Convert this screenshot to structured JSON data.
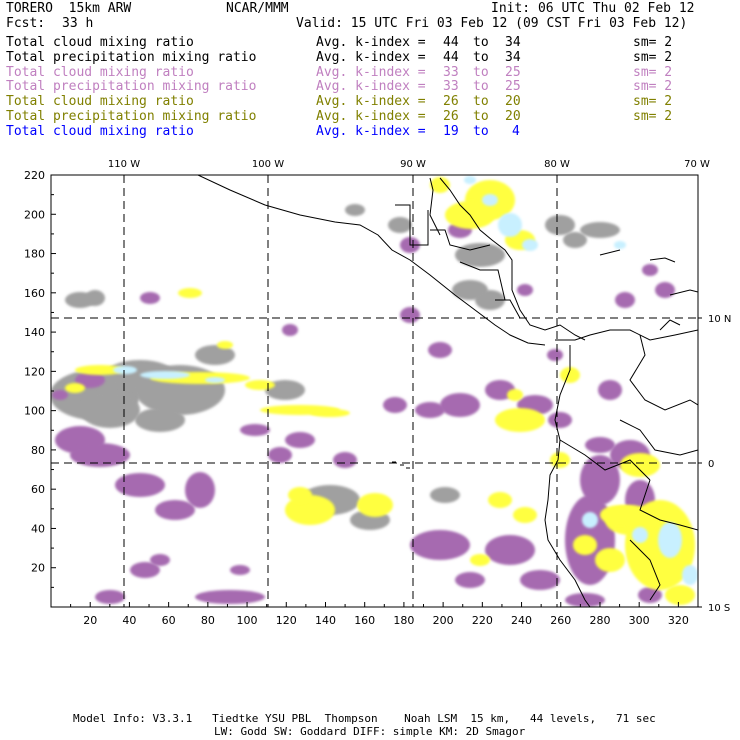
{
  "header": {
    "model": "TORERO  15km ARW",
    "center": "NCAR/MMM",
    "init": "Init: 06 UTC Thu 02 Feb 12",
    "fcst_label": "Fcst:",
    "fcst_value": "33 h",
    "valid": "Valid: 15 UTC Fri 03 Feb 12 (09 CST Fri 03 Feb 12)"
  },
  "legend": [
    {
      "field": "Total cloud mixing ratio",
      "kindex": "Avg. k-index =",
      "from": "44",
      "to_word": "to",
      "to": "34",
      "sm": "sm= 2",
      "color": "#000000"
    },
    {
      "field": "Total precipitation mixing ratio",
      "kindex": "Avg. k-index =",
      "from": "44",
      "to_word": "to",
      "to": "34",
      "sm": "sm= 2",
      "color": "#000000"
    },
    {
      "field": "Total cloud mixing ratio",
      "kindex": "Avg. k-index =",
      "from": "33",
      "to_word": "to",
      "to": "25",
      "sm": "sm= 2",
      "color": "#c080c0"
    },
    {
      "field": "Total precipitation mixing ratio",
      "kindex": "Avg. k-index =",
      "from": "33",
      "to_word": "to",
      "to": "25",
      "sm": "sm= 2",
      "color": "#c080c0"
    },
    {
      "field": "Total cloud mixing ratio",
      "kindex": "Avg. k-index =",
      "from": "26",
      "to_word": "to",
      "to": "20",
      "sm": "sm= 2",
      "color": "#808000"
    },
    {
      "field": "Total precipitation mixing ratio",
      "kindex": "Avg. k-index =",
      "from": "26",
      "to_word": "to",
      "to": "20",
      "sm": "sm= 2",
      "color": "#808000"
    },
    {
      "field": "Total cloud mixing ratio",
      "kindex": "Avg. k-index =",
      "from": "19",
      "to_word": "to",
      "to": "4",
      "sm": "",
      "color": "#0000ff"
    }
  ],
  "map": {
    "lon_labels": [
      "110 W",
      "100 W",
      "90 W",
      "80 W",
      "70 W"
    ],
    "lat_labels": [
      "10 N",
      "0",
      "10 S"
    ],
    "x_ticks": [
      "20",
      "40",
      "60",
      "80",
      "100",
      "120",
      "140",
      "160",
      "180",
      "200",
      "220",
      "240",
      "260",
      "280",
      "300",
      "320"
    ],
    "y_ticks": [
      "20",
      "40",
      "60",
      "80",
      "100",
      "120",
      "140",
      "160",
      "180",
      "200",
      "220"
    ],
    "colors": {
      "gray": "#a0a0a0",
      "purple": "#a66ab0",
      "yellow": "#ffff40",
      "cyan": "#c8f0ff",
      "border": "#000000",
      "grid": "#000000"
    }
  },
  "footer": {
    "line1": "Model Info: V3.3.1   Tiedtke YSU PBL  Thompson    Noah LSM  15 km,   44 levels,   71 sec",
    "line2": "LW: Godd SW: Goddard DIFF: simple KM: 2D Smagor"
  }
}
